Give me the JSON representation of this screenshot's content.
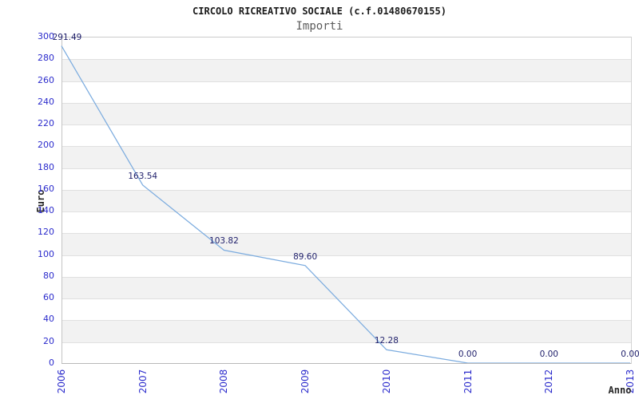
{
  "chart_data": {
    "type": "line",
    "title": "CIRCOLO RICREATIVO SOCIALE (c.f.01480670155)",
    "subtitle": "Importi",
    "xlabel": "Anno",
    "ylabel": "Euro",
    "categories": [
      "2006",
      "2007",
      "2008",
      "2009",
      "2010",
      "2011",
      "2012",
      "2013"
    ],
    "series": [
      {
        "name": "Importi",
        "values": [
          291.49,
          163.54,
          103.82,
          89.6,
          12.28,
          0.0,
          0.0,
          0.0
        ]
      }
    ],
    "point_labels": [
      "291.49",
      "163.54",
      "103.82",
      "89.60",
      "12.28",
      "0.00",
      "0.00",
      "0.00"
    ],
    "ylim": [
      0,
      300
    ],
    "ytick_step": 20,
    "ytick_labels": [
      "0",
      "20",
      "40",
      "60",
      "80",
      "100",
      "120",
      "140",
      "160",
      "180",
      "200",
      "220",
      "240",
      "260",
      "280",
      "300"
    ],
    "grid": "horizontal alternating gray bands every 20 units",
    "legend": "none",
    "colors": {
      "line": "#7cacdf",
      "tick_label": "#2b2bcc",
      "point_label": "#1e1e6a",
      "band_gray": "#f2f2f2",
      "band_border": "#e0e0e0",
      "plot_border": "#cccccc",
      "title": "#1a1a1a",
      "subtitle": "#5c5c5c",
      "axis_title": "#262626"
    }
  }
}
